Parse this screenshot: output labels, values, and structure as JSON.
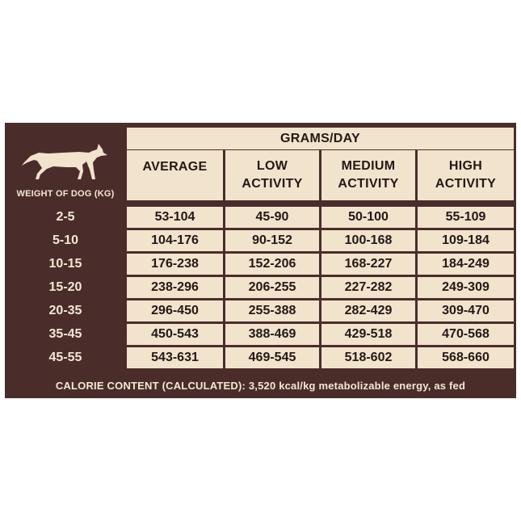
{
  "table": {
    "grams_per_day": "GRAMS/DAY",
    "weight_header": "WEIGHT OF DOG (KG)",
    "icon": "dog-silhouette-icon",
    "columns": [
      {
        "line1": "AVERAGE",
        "line2": ""
      },
      {
        "line1": "LOW",
        "line2": "ACTIVITY"
      },
      {
        "line1": "MEDIUM",
        "line2": "ACTIVITY"
      },
      {
        "line1": "HIGH",
        "line2": "ACTIVITY"
      }
    ],
    "rows": [
      {
        "weight": "2-5",
        "values": [
          "53-104",
          "45-90",
          "50-100",
          "55-109"
        ]
      },
      {
        "weight": "5-10",
        "values": [
          "104-176",
          "90-152",
          "100-168",
          "109-184"
        ]
      },
      {
        "weight": "10-15",
        "values": [
          "176-238",
          "152-206",
          "168-227",
          "184-249"
        ]
      },
      {
        "weight": "15-20",
        "values": [
          "238-296",
          "206-255",
          "227-282",
          "249-309"
        ]
      },
      {
        "weight": "20-35",
        "values": [
          "296-450",
          "255-388",
          "282-429",
          "309-470"
        ]
      },
      {
        "weight": "35-45",
        "values": [
          "450-543",
          "388-469",
          "429-518",
          "470-568"
        ]
      },
      {
        "weight": "45-55",
        "values": [
          "543-631",
          "469-545",
          "518-602",
          "568-660"
        ]
      }
    ],
    "footer": "CALORIE CONTENT (CALCULATED): 3,520 kcal/kg metabolizable energy, as fed",
    "colors": {
      "dark": "#4a2d2b",
      "cream": "#f2e3cd"
    }
  }
}
